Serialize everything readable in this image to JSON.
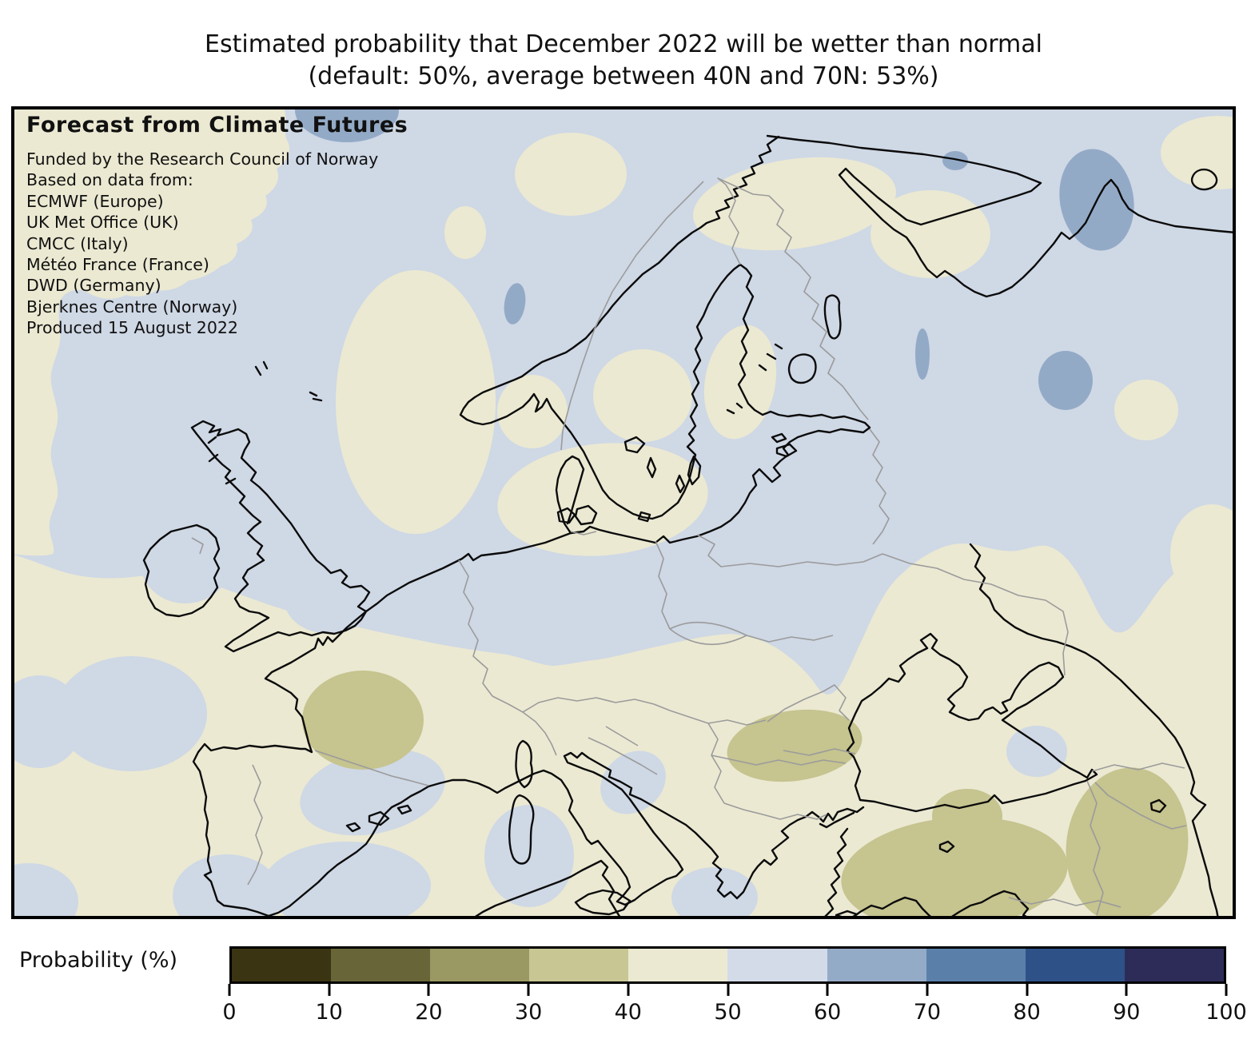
{
  "title": {
    "line1": "Estimated probability that December 2022 will be wetter than normal",
    "line2": "(default: 50%, average between 40N and 70N: 53%)"
  },
  "map_panel": {
    "heading": "Forecast from Climate Futures",
    "credits": [
      "Funded by the Research Council of Norway",
      "Based on data from:",
      "ECMWF (Europe)",
      "UK Met Office (UK)",
      "CMCC (Italy)",
      "Météo France (France)",
      "DWD (Germany)",
      "Bjerknes Centre (Norway)",
      "Produced 15 August 2022"
    ]
  },
  "colorbar": {
    "label": "Probability (%)",
    "tick_labels": [
      "0",
      "10",
      "20",
      "30",
      "40",
      "50",
      "60",
      "70",
      "80",
      "90",
      "100"
    ],
    "segments": [
      {
        "range": "0-10",
        "color": "#3a3413"
      },
      {
        "range": "10-20",
        "color": "#686639"
      },
      {
        "range": "20-30",
        "color": "#9a9963"
      },
      {
        "range": "30-40",
        "color": "#c8c693"
      },
      {
        "range": "40-50",
        "color": "#ebe9d2"
      },
      {
        "range": "50-60",
        "color": "#d3dbe9"
      },
      {
        "range": "60-70",
        "color": "#94abc7"
      },
      {
        "range": "70-80",
        "color": "#5a80aa"
      },
      {
        "range": "80-90",
        "color": "#2e5288"
      },
      {
        "range": "90-100",
        "color": "#2d2c58"
      }
    ]
  },
  "map_fill_colors": {
    "p30_40": "#c6c48f",
    "p40_50": "#ebe9d2",
    "p50_60": "#cfd8e5",
    "p60_70": "#93aac7"
  },
  "map_line_colors": {
    "coastline": "#0b0b0b",
    "border": "#9b9b9b",
    "frame": "#000000"
  }
}
